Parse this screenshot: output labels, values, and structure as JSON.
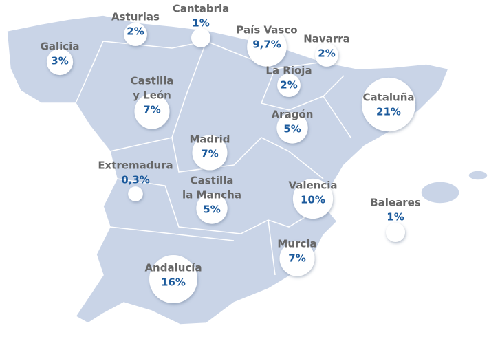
{
  "regions": [
    {
      "name_lines": [
        "Galicia"
      ],
      "value": 3,
      "label": "3%"
    },
    {
      "name_lines": [
        "Asturias"
      ],
      "value": 2,
      "label": "2%"
    },
    {
      "name_lines": [
        "Cantabria"
      ],
      "value": 1,
      "label": "1%"
    },
    {
      "name_lines": [
        "País Vasco"
      ],
      "value": 9.7,
      "label": "9,7%"
    },
    {
      "name_lines": [
        "Navarra"
      ],
      "value": 2,
      "label": "2%"
    },
    {
      "name_lines": [
        "La Rioja"
      ],
      "value": 2,
      "label": "2%"
    },
    {
      "name_lines": [
        "Cataluña"
      ],
      "value": 21,
      "label": "21%"
    },
    {
      "name_lines": [
        "Castilla",
        "y León"
      ],
      "value": 7,
      "label": "7%"
    },
    {
      "name_lines": [
        "Aragón"
      ],
      "value": 5,
      "label": "5%"
    },
    {
      "name_lines": [
        "Madrid"
      ],
      "value": 7,
      "label": "7%"
    },
    {
      "name_lines": [
        "Extremadura"
      ],
      "value": 0.3,
      "label": "0,3%"
    },
    {
      "name_lines": [
        "Castilla",
        "la Mancha"
      ],
      "value": 5,
      "label": "5%"
    },
    {
      "name_lines": [
        "Valencia"
      ],
      "value": 10,
      "label": "10%"
    },
    {
      "name_lines": [
        "Baleares"
      ],
      "value": 1,
      "label": "1%"
    },
    {
      "name_lines": [
        "Murcia"
      ],
      "value": 7,
      "label": "7%"
    },
    {
      "name_lines": [
        "Andalucía"
      ],
      "value": 16,
      "label": "16%"
    }
  ]
}
